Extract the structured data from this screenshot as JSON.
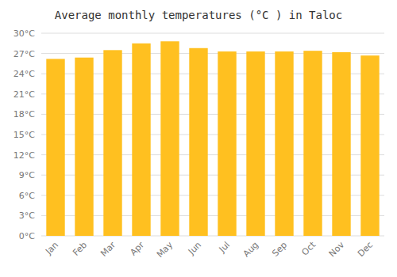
{
  "chart_data": {
    "type": "bar",
    "title": "Average monthly temperatures (°C ) in Taloc",
    "categories": [
      "Jan",
      "Feb",
      "Mar",
      "Apr",
      "May",
      "Jun",
      "Jul",
      "Aug",
      "Sep",
      "Oct",
      "Nov",
      "Dec"
    ],
    "values": [
      26.2,
      26.4,
      27.5,
      28.5,
      28.8,
      27.8,
      27.3,
      27.3,
      27.3,
      27.4,
      27.2,
      26.7
    ],
    "color": "#FFC020",
    "ylim": [
      0,
      30
    ],
    "yticks": [
      {
        "value": 0,
        "label": "0°C"
      },
      {
        "value": 3,
        "label": "3°C"
      },
      {
        "value": 6,
        "label": "6°C"
      },
      {
        "value": 9,
        "label": "9°C"
      },
      {
        "value": 12,
        "label": "12°C"
      },
      {
        "value": 15,
        "label": "15°C"
      },
      {
        "value": 18,
        "label": "18°C"
      },
      {
        "value": 21,
        "label": "21°C"
      },
      {
        "value": 24,
        "label": "24°C"
      },
      {
        "value": 27,
        "label": "27°C"
      },
      {
        "value": 30,
        "label": "30°C"
      }
    ],
    "grid": true
  }
}
